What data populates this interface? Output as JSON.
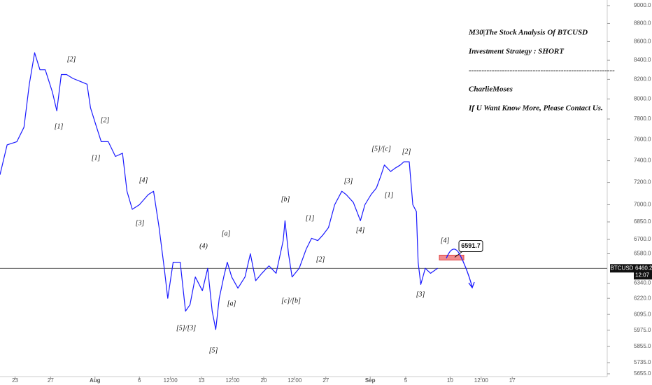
{
  "chart_data": {
    "type": "line",
    "log_scale": true,
    "xlim": [
      -1.7,
      66.7
    ],
    "ylim": [
      5630,
      9020
    ],
    "xticks": [
      {
        "value": 0,
        "label": "23"
      },
      {
        "value": 4,
        "label": "27"
      },
      {
        "value": 9,
        "label": "Aug"
      },
      {
        "value": 14,
        "label": "6"
      },
      {
        "value": 17.5,
        "label": "12:00"
      },
      {
        "value": 21,
        "label": "13"
      },
      {
        "value": 24.5,
        "label": "12:00"
      },
      {
        "value": 28,
        "label": "20"
      },
      {
        "value": 31.5,
        "label": "12:00"
      },
      {
        "value": 35,
        "label": "27"
      },
      {
        "value": 40,
        "label": "Sep"
      },
      {
        "value": 44,
        "label": "5"
      },
      {
        "value": 49,
        "label": "10"
      },
      {
        "value": 52.5,
        "label": "12:00"
      },
      {
        "value": 56,
        "label": "17"
      }
    ],
    "yticks": [
      {
        "value": 9000,
        "label": "9000.0"
      },
      {
        "value": 8800,
        "label": "8800.0"
      },
      {
        "value": 8600,
        "label": "8600.0"
      },
      {
        "value": 8400,
        "label": "8400.0"
      },
      {
        "value": 8200,
        "label": "8200.0"
      },
      {
        "value": 8000,
        "label": "8000.0"
      },
      {
        "value": 7800,
        "label": "7800.0"
      },
      {
        "value": 7600,
        "label": "7600.0"
      },
      {
        "value": 7400,
        "label": "7400.0"
      },
      {
        "value": 7200,
        "label": "7200.0"
      },
      {
        "value": 7000,
        "label": "7000.0"
      },
      {
        "value": 6850,
        "label": "6850.0"
      },
      {
        "value": 6700,
        "label": "6700.0"
      },
      {
        "value": 6580,
        "label": "6580.0"
      },
      {
        "value": 6340,
        "label": "6340.0"
      },
      {
        "value": 6220,
        "label": "6220.0"
      },
      {
        "value": 6095,
        "label": "6095.0"
      },
      {
        "value": 5975,
        "label": "5975.0"
      },
      {
        "value": 5855,
        "label": "5855.0"
      },
      {
        "value": 5735,
        "label": "5735.0"
      },
      {
        "value": 5655,
        "label": "5655.0"
      }
    ],
    "series": [
      {
        "name": "BTCUSD",
        "color": "#1a1aff",
        "x": [
          -1.7,
          -0.9,
          0.2,
          1.0,
          1.6,
          2.2,
          2.8,
          3.4,
          4.2,
          4.7,
          5.2,
          5.8,
          6.5,
          7.3,
          8.1,
          8.5,
          9.1,
          9.7,
          10.5,
          11.3,
          12.1,
          12.6,
          13.2,
          14.0,
          15.0,
          15.6,
          16.2,
          16.8,
          17.2,
          17.8,
          18.6,
          19.2,
          19.7,
          20.3,
          21.1,
          21.7,
          22.2,
          22.6,
          23.0,
          23.5,
          23.9,
          24.4,
          25.1,
          25.9,
          26.5,
          27.1,
          27.8,
          28.6,
          29.4,
          30.2,
          30.4,
          30.8,
          31.2,
          32.0,
          32.8,
          33.4,
          34.1,
          34.7,
          35.3,
          36.0,
          36.8,
          37.3,
          38.1,
          38.9,
          39.4,
          40.1,
          40.7,
          41.2,
          41.6,
          42.3,
          42.8,
          43.4,
          43.8,
          44.4,
          44.8,
          45.2,
          45.4,
          45.7,
          46.2,
          46.8,
          47.6
        ],
        "values": [
          7270,
          7550,
          7580,
          7720,
          8150,
          8480,
          8300,
          8300,
          8070,
          7880,
          8250,
          8250,
          8210,
          8180,
          8150,
          7910,
          7740,
          7580,
          7580,
          7440,
          7470,
          7120,
          6960,
          7000,
          7090,
          7120,
          6810,
          6460,
          6220,
          6510,
          6510,
          6120,
          6170,
          6390,
          6280,
          6460,
          6120,
          5980,
          6220,
          6390,
          6510,
          6390,
          6300,
          6390,
          6580,
          6360,
          6420,
          6480,
          6420,
          6690,
          6860,
          6580,
          6390,
          6460,
          6620,
          6710,
          6690,
          6740,
          6800,
          7000,
          7120,
          7090,
          7020,
          6860,
          7000,
          7090,
          7150,
          7260,
          7360,
          7300,
          7330,
          7360,
          7390,
          7390,
          7000,
          6940,
          6510,
          6330,
          6460,
          6420,
          6460
        ]
      }
    ],
    "current_price": 6460.2,
    "symbol": "BTCUSD",
    "countdown": "12:07",
    "target": 6591.7,
    "annotations": [
      "[2]",
      "[1]",
      "[2]",
      "[1]",
      "[4]",
      "[3]",
      "(4)",
      "[a]",
      "[b]",
      "[1]",
      "[3]",
      "[5]/[c]",
      "[2]",
      "[1]",
      "[4]",
      "[2]",
      "[c]/[b]",
      "[a]",
      "[5]/[3]",
      "[5]",
      "[3]",
      "[4]"
    ],
    "note": {
      "title": "M30|The Stock Analysis Of BTCUSD",
      "strategy": "Investment Strategy :  SHORT",
      "divider": "---------------------------------------------------------",
      "author": "CharlieMoses",
      "contact": "If U Want Know More, Please Contact Us."
    }
  }
}
